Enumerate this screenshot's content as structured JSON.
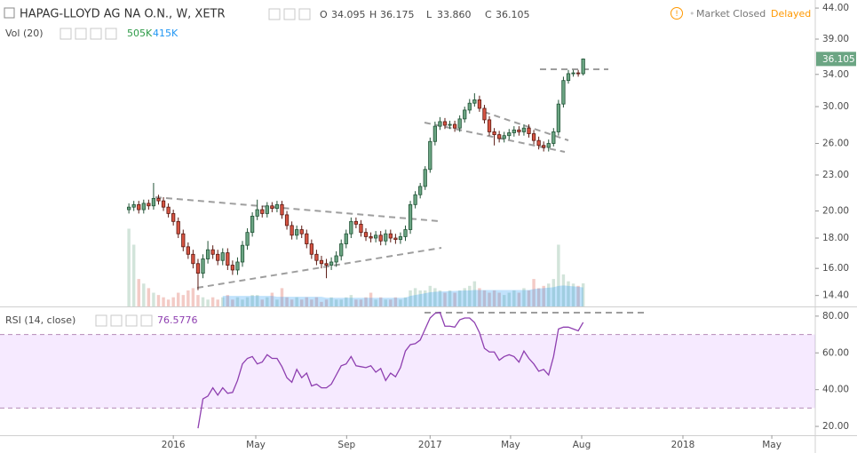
{
  "header": {
    "title": "HAPAG-LLOYD AG NA O.N., W, XETR",
    "open_label": "O",
    "high_label": "H",
    "low_label": "L",
    "close_label": "C",
    "low_text": "33.860",
    "status": "Market Closed",
    "delay": "Delayed"
  },
  "chart_data": [
    {
      "type": "candlestick",
      "log": true,
      "up_color": "#6ba583",
      "down_color": "#d75442",
      "ylim": [
        13.8,
        45.4
      ],
      "yticks": [
        {
          "value": 14.4,
          "label": "14.40"
        },
        {
          "value": 16,
          "label": "16.00"
        },
        {
          "value": 18,
          "label": "18.00"
        },
        {
          "value": 20,
          "label": "20.00"
        },
        {
          "value": 23,
          "label": "23.00"
        },
        {
          "value": 26,
          "label": "26.00"
        },
        {
          "value": 30,
          "label": "30.00"
        },
        {
          "value": 34,
          "label": "34.00"
        },
        {
          "value": 39,
          "label": "39.00"
        },
        {
          "value": 44,
          "label": "44.00"
        }
      ],
      "xlim": [
        -35.1,
        130
      ],
      "xticks": [
        {
          "value": 0,
          "label": "2016"
        },
        {
          "value": 16.7,
          "label": "May"
        },
        {
          "value": 35.1,
          "label": "Sep"
        },
        {
          "value": 52,
          "label": "2017"
        },
        {
          "value": 68.3,
          "label": "May"
        },
        {
          "value": 82.7,
          "label": "Aug"
        },
        {
          "value": 103.2,
          "label": "2018"
        },
        {
          "value": 121.2,
          "label": "May"
        }
      ],
      "x": [
        -9,
        -8,
        -7,
        -6,
        -5,
        -4,
        -3,
        -2,
        -1,
        0,
        1,
        2,
        3,
        4,
        5,
        6,
        7,
        8,
        9,
        10,
        11,
        12,
        13,
        14,
        15,
        16,
        17,
        18,
        19,
        20,
        21,
        22,
        23,
        24,
        25,
        26,
        27,
        28,
        29,
        30,
        31,
        32,
        33,
        34,
        35,
        36,
        37,
        38,
        39,
        40,
        41,
        42,
        43,
        44,
        45,
        46,
        47,
        48,
        49,
        50,
        51,
        52,
        53,
        54,
        55,
        56,
        57,
        58,
        59,
        60,
        61,
        62,
        63,
        64,
        65,
        66,
        67,
        68,
        69,
        70,
        71,
        72,
        73,
        74,
        75,
        76,
        77,
        78,
        79,
        80,
        81,
        82,
        83
      ],
      "open": [
        20.1,
        20.3,
        20.5,
        20.1,
        20.6,
        20.4,
        21.0,
        20.8,
        20.3,
        19.8,
        19.2,
        18.3,
        17.4,
        16.9,
        16.3,
        15.7,
        16.6,
        17.2,
        16.9,
        16.5,
        17.0,
        16.2,
        15.9,
        16.4,
        17.5,
        18.4,
        19.6,
        20.1,
        19.8,
        20.4,
        20.2,
        20.5,
        19.7,
        18.9,
        18.2,
        18.6,
        18.3,
        17.6,
        16.9,
        16.5,
        16.3,
        16.2,
        16.4,
        16.8,
        17.6,
        18.3,
        19.2,
        19.0,
        18.4,
        18.1,
        18.0,
        18.2,
        17.8,
        18.3,
        18.0,
        17.9,
        18.1,
        18.6,
        20.5,
        21.3,
        22.0,
        23.5,
        26.2,
        27.8,
        28.3,
        27.9,
        28.0,
        27.6,
        28.6,
        29.6,
        30.4,
        30.8,
        29.8,
        28.5,
        27.2,
        26.9,
        26.5,
        26.8,
        27.1,
        27.4,
        27.2,
        27.6,
        27.0,
        26.3,
        25.8,
        25.6,
        26.0,
        27.2,
        30.3,
        33.2,
        34.1,
        34.2,
        34.095
      ],
      "high": [
        20.6,
        20.8,
        20.8,
        20.9,
        20.9,
        22.3,
        21.3,
        21.1,
        20.6,
        20.1,
        19.5,
        18.6,
        17.7,
        17.2,
        16.6,
        16.9,
        17.8,
        17.5,
        17.2,
        17.3,
        17.3,
        16.5,
        16.7,
        17.8,
        18.7,
        19.9,
        20.9,
        20.4,
        20.7,
        20.7,
        20.8,
        20.8,
        20.0,
        19.2,
        18.9,
        18.9,
        18.6,
        17.9,
        17.2,
        16.8,
        16.6,
        16.7,
        17.1,
        17.9,
        18.6,
        19.5,
        19.5,
        19.3,
        18.7,
        18.4,
        18.5,
        18.5,
        18.6,
        18.6,
        18.3,
        18.4,
        18.9,
        20.8,
        21.6,
        22.3,
        23.8,
        26.6,
        28.3,
        28.8,
        28.7,
        28.4,
        28.4,
        29.0,
        30.0,
        30.9,
        31.6,
        31.3,
        30.2,
        28.9,
        27.6,
        27.3,
        27.2,
        27.5,
        27.8,
        27.8,
        28.0,
        28.0,
        27.4,
        26.7,
        26.2,
        26.4,
        27.6,
        30.8,
        33.7,
        34.6,
        34.6,
        34.6,
        36.175
      ],
      "low": [
        19.8,
        20.0,
        19.8,
        19.8,
        20.1,
        20.1,
        20.5,
        20.0,
        19.5,
        18.9,
        18.0,
        17.1,
        16.6,
        16.0,
        14.7,
        15.4,
        16.3,
        16.6,
        16.2,
        16.2,
        15.9,
        15.6,
        15.6,
        16.1,
        17.2,
        18.1,
        19.3,
        19.5,
        19.5,
        19.9,
        19.9,
        19.4,
        18.6,
        17.9,
        17.9,
        18.0,
        17.3,
        16.6,
        16.2,
        16.0,
        15.4,
        15.9,
        16.1,
        16.5,
        17.3,
        18.0,
        18.7,
        18.1,
        17.8,
        17.7,
        17.7,
        17.5,
        17.5,
        17.7,
        17.6,
        17.6,
        17.8,
        18.3,
        20.2,
        21.0,
        21.7,
        23.2,
        25.8,
        27.4,
        27.5,
        27.5,
        27.2,
        27.2,
        28.2,
        29.2,
        30.0,
        29.4,
        28.1,
        26.8,
        25.8,
        26.1,
        26.1,
        26.4,
        26.7,
        26.8,
        26.8,
        26.6,
        25.9,
        25.4,
        25.2,
        25.2,
        25.7,
        26.8,
        29.9,
        32.8,
        33.7,
        33.7,
        33.86
      ],
      "close": [
        20.3,
        20.5,
        20.1,
        20.6,
        20.4,
        21.0,
        20.8,
        20.3,
        19.8,
        19.2,
        18.3,
        17.4,
        16.9,
        16.3,
        15.7,
        16.6,
        17.2,
        16.9,
        16.5,
        17.0,
        16.2,
        15.9,
        16.4,
        17.5,
        18.4,
        19.6,
        20.1,
        19.8,
        20.4,
        20.2,
        20.5,
        19.7,
        18.9,
        18.2,
        18.6,
        18.3,
        17.6,
        16.9,
        16.5,
        16.3,
        16.2,
        16.4,
        16.8,
        17.6,
        18.3,
        19.2,
        19.0,
        18.4,
        18.1,
        18.0,
        18.2,
        17.8,
        18.3,
        18.0,
        17.9,
        18.1,
        18.6,
        20.5,
        21.3,
        22.0,
        23.5,
        26.2,
        27.8,
        28.3,
        27.9,
        28.0,
        27.6,
        28.6,
        29.6,
        30.4,
        30.8,
        29.8,
        28.5,
        27.2,
        26.9,
        26.5,
        26.8,
        27.1,
        27.4,
        27.2,
        27.6,
        27.0,
        26.3,
        25.8,
        25.6,
        26.0,
        27.2,
        30.3,
        33.2,
        34.1,
        34.2,
        34.095,
        36.105
      ]
    },
    {
      "type": "volume",
      "title": "Vol (20)",
      "ylim": [
        0,
        6700
      ],
      "up_color": "rgba(107,165,131,0.3)",
      "down_color": "rgba(215,84,66,0.3)",
      "ma_color": "rgba(33,150,243,0.28)",
      "values": [
        1700,
        1350,
        600,
        500,
        400,
        300,
        250,
        200,
        150,
        200,
        300,
        250,
        350,
        400,
        250,
        200,
        150,
        200,
        150,
        200,
        250,
        150,
        200,
        150,
        200,
        250,
        250,
        150,
        200,
        300,
        150,
        400,
        200,
        150,
        200,
        150,
        200,
        150,
        200,
        100,
        150,
        200,
        150,
        150,
        200,
        250,
        150,
        150,
        200,
        300,
        150,
        200,
        150,
        150,
        200,
        150,
        200,
        350,
        400,
        350,
        350,
        450,
        400,
        350,
        300,
        350,
        300,
        350,
        400,
        450,
        550,
        400,
        350,
        300,
        350,
        300,
        250,
        300,
        350,
        300,
        400,
        350,
        600,
        400,
        450,
        500,
        600,
        1350,
        700,
        550,
        500,
        450,
        505
      ],
      "ma": [
        null,
        null,
        null,
        null,
        null,
        null,
        null,
        null,
        null,
        null,
        null,
        null,
        null,
        null,
        null,
        null,
        null,
        null,
        null,
        230,
        230,
        230,
        230,
        230,
        230,
        230,
        230,
        230,
        230,
        230,
        210,
        210,
        210,
        210,
        210,
        210,
        210,
        210,
        210,
        210,
        190,
        190,
        190,
        190,
        190,
        190,
        190,
        190,
        190,
        190,
        190,
        190,
        190,
        190,
        190,
        190,
        190,
        230,
        250,
        270,
        290,
        310,
        320,
        325,
        330,
        335,
        340,
        345,
        350,
        350,
        360,
        360,
        360,
        360,
        360,
        360,
        360,
        360,
        360,
        360,
        360,
        360,
        380,
        390,
        400,
        410,
        420,
        450,
        460,
        450,
        440,
        430,
        415
      ],
      "last_labels": [
        "505K",
        "415K"
      ]
    },
    {
      "type": "line",
      "title": "RSI (14, close)",
      "color": "#8e3fb0",
      "band": [
        30,
        70
      ],
      "band_color": "rgba(153,21,255,0.09)",
      "ylim": [
        15.2,
        84.3
      ],
      "yticks": [
        {
          "value": 20,
          "label": "20.00"
        },
        {
          "value": 40,
          "label": "40.00"
        },
        {
          "value": 60,
          "label": "60.00"
        },
        {
          "value": 80,
          "label": "80.00"
        }
      ],
      "values": [
        null,
        null,
        null,
        null,
        null,
        null,
        null,
        null,
        null,
        null,
        null,
        null,
        null,
        null,
        19,
        35,
        36.5,
        41,
        37,
        41,
        38,
        38.5,
        45,
        54,
        57,
        58,
        54,
        55,
        59,
        57,
        57,
        52.5,
        46.5,
        44,
        51,
        46.5,
        49,
        42,
        43,
        41,
        41,
        43,
        48,
        53,
        54,
        58,
        53,
        52.5,
        52,
        53,
        49.5,
        51.5,
        45,
        49,
        47,
        52,
        61,
        64.5,
        65,
        67,
        73,
        79,
        81.5,
        82,
        74.5,
        74.5,
        74,
        78,
        79,
        79,
        76.5,
        71,
        62.5,
        60.5,
        60.5,
        56,
        58,
        59,
        58,
        55,
        61,
        57,
        54,
        50,
        51,
        48,
        58,
        73,
        74,
        74,
        73,
        72,
        76.5776
      ]
    }
  ]
}
